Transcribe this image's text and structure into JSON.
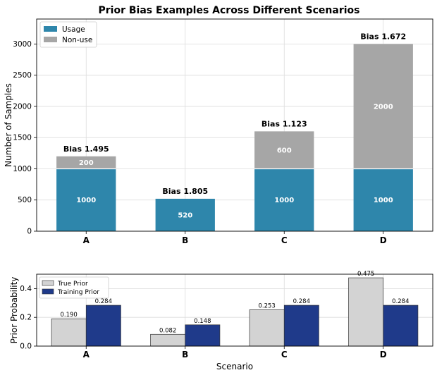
{
  "chart_data": [
    {
      "type": "bar",
      "stacked": true,
      "title": "Prior Bias Examples Across Different Scenarios",
      "xlabel": "",
      "ylabel": "Number of Samples",
      "categories": [
        "A",
        "B",
        "C",
        "D"
      ],
      "ylim": [
        0,
        3400
      ],
      "yticks": [
        0,
        500,
        1000,
        1500,
        2000,
        2500,
        3000
      ],
      "grid": true,
      "legend_position": "top-left",
      "series": [
        {
          "name": "Usage",
          "color": "#2e86ab",
          "values": [
            1000,
            520,
            1000,
            1000
          ]
        },
        {
          "name": "Non-use",
          "color": "#a6a6a6",
          "values": [
            200,
            0,
            600,
            2000
          ]
        }
      ],
      "bias_labels": [
        "Bias 1.495",
        "Bias 1.805",
        "Bias 1.123",
        "Bias 1.672"
      ]
    },
    {
      "type": "bar",
      "grouped": true,
      "xlabel": "Scenario",
      "ylabel": "Prior Probability",
      "categories": [
        "A",
        "B",
        "C",
        "D"
      ],
      "ylim": [
        0,
        0.5
      ],
      "yticks": [
        0.0,
        0.2,
        0.4
      ],
      "grid": true,
      "legend_position": "top-left",
      "series": [
        {
          "name": "True Prior",
          "color": "#d3d3d3",
          "values": [
            0.19,
            0.082,
            0.253,
            0.475
          ],
          "labels": [
            "0.190",
            "0.082",
            "0.253",
            "0.475"
          ]
        },
        {
          "name": "Training Prior",
          "color": "#1f3a8a",
          "values": [
            0.284,
            0.148,
            0.284,
            0.284
          ],
          "labels": [
            "0.284",
            "0.148",
            "0.284",
            "0.284"
          ]
        }
      ]
    }
  ]
}
